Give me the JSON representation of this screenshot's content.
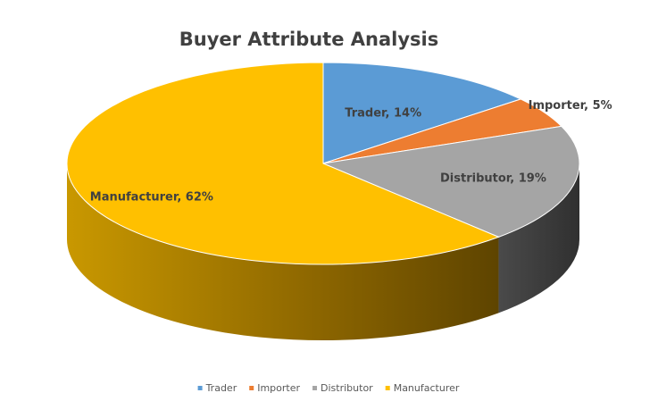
{
  "chart_data": {
    "type": "pie",
    "title": "Buyer Attribute Analysis",
    "categories": [
      "Trader",
      "Importer",
      "Distributor",
      "Manufacturer"
    ],
    "values": [
      14,
      5,
      19,
      62
    ],
    "value_labels": [
      "Trader, 14%",
      "Importer, 5%",
      "Distributor, 19%",
      "Manufacturer, 62%"
    ],
    "colors": [
      "#5b9bd5",
      "#ed7d31",
      "#a5a5a5",
      "#ffc000"
    ],
    "legend": "bottom"
  }
}
